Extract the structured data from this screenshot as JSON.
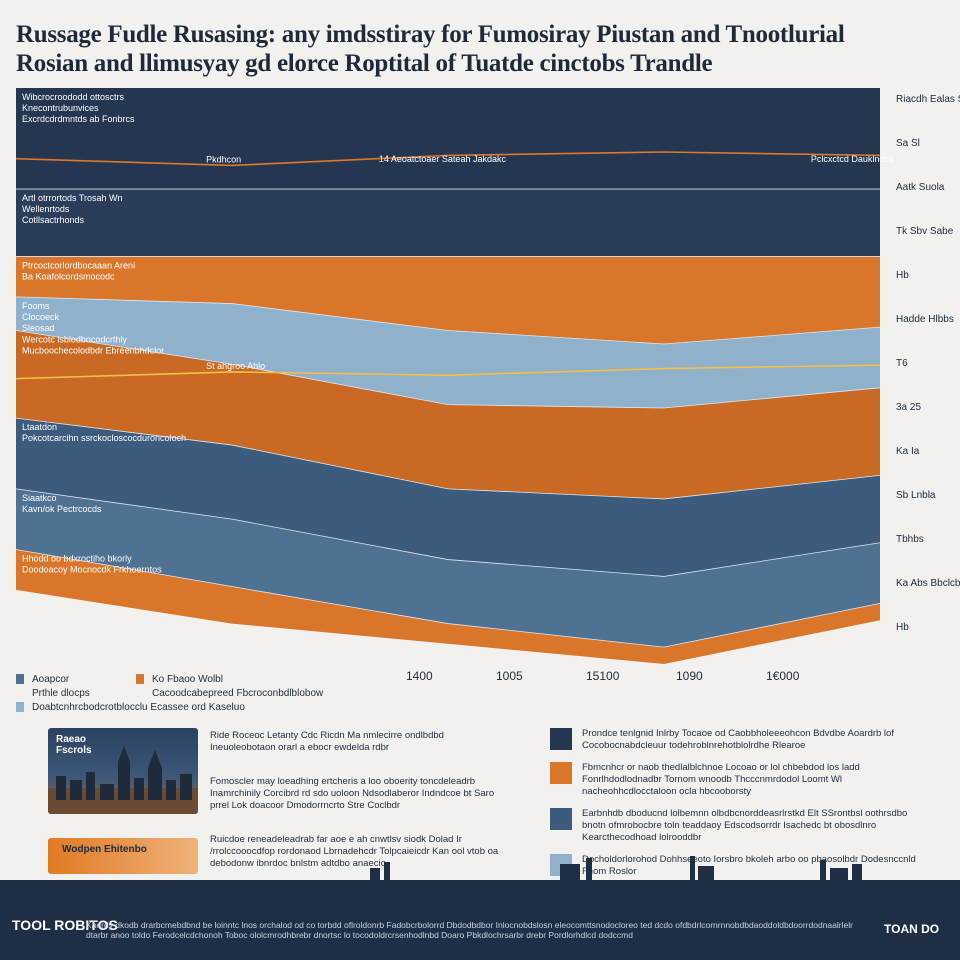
{
  "title": {
    "line1": "Russage Fudle Rusasing: any imdsstiray for Fumosiray Piustan and Tnootlurial",
    "line2": "Rosian and llimusyay gd elorce Roptital of Tuatde cinctobs Trandle"
  },
  "chart_data": {
    "type": "area",
    "x": [
      1400,
      1500,
      1600,
      1700,
      1800
    ],
    "xlabel": "",
    "ylabel": "",
    "x_ticks": [
      "1400",
      "1005",
      "15100",
      "1090",
      "1€000"
    ],
    "bands": [
      {
        "name": "Band 1",
        "color": "#243650",
        "label_lines": [
          "Wibcrocroododd ottosctrs",
          "Knecontrubunvices",
          "Excrdcdrdmntds ab Fonbrcs"
        ],
        "values": [
          3,
          3,
          3,
          3,
          3
        ]
      },
      {
        "name": "Band 2",
        "color": "#2a3d59",
        "label_lines": [
          "Artl otrrortods Trosah Wn",
          "Wellenrtods",
          "Cotllsactrhonds"
        ],
        "values": [
          2,
          2,
          2,
          2,
          2
        ]
      },
      {
        "name": "Band 3",
        "color": "#d9762a",
        "label_lines": [
          "Ptrcoctcorlordbocaaan Areni",
          "Ba Koafolcordsmocodc"
        ],
        "values": [
          1.2,
          1.4,
          2.2,
          2.6,
          2.1
        ]
      },
      {
        "name": "Band 4",
        "color": "#8fb1cc",
        "label_lines": [
          "Fooms",
          "Clocoeck",
          "Sleosad"
        ],
        "values": [
          1,
          1.8,
          2.2,
          1.9,
          1.8
        ]
      },
      {
        "name": "Band 5",
        "color": "#c86a23",
        "label_lines": [
          "Wercotc isblodbocodcrthly",
          "Mucboochecolodbdr Ebreenbhdclor"
        ],
        "values": [
          2.6,
          2.4,
          2.5,
          2.7,
          2.6
        ]
      },
      {
        "name": "Band 6",
        "color": "#3d5c7d",
        "label_lines": [
          "Ltaatdon",
          "Pokcotcarcihn ssrckocloscocduroncoloch"
        ],
        "values": [
          2.1,
          2.2,
          2.1,
          2.3,
          2
        ]
      },
      {
        "name": "Band 7",
        "color": "#4f7292",
        "label_lines": [
          "Siaatkco",
          "Kavn/ok Pectrcocds"
        ],
        "values": [
          1.8,
          2,
          1.9,
          2.1,
          1.8
        ]
      },
      {
        "name": "Band 8",
        "color": "#d9762a",
        "label_lines": [
          "Hhodd oo bdxroctiho bkorly",
          "Doodoacoy Mocnocdk Frkhoerntos"
        ],
        "values": [
          1.2,
          1.1,
          0.6,
          0.5,
          0.5
        ]
      }
    ],
    "lines": [
      {
        "color": "#e0782a",
        "label": "Pkdhcon",
        "values": [
          2.1,
          2.3,
          2.0,
          1.9,
          2.0
        ]
      },
      {
        "color": "#f4c048",
        "label": "St ahgroo Ahlo",
        "values": [
          1.8,
          1.6,
          1.7,
          1.5,
          1.4
        ]
      }
    ],
    "right_labels": [
      "Riacdh Ealas Sobs",
      "Sa Sl",
      "Aatk Suola",
      "Tk Sbv Sabe",
      "Hb",
      "Hadde Hlbbs",
      "T6",
      "3a 25",
      "Ka Ia",
      "Sb Lnbla",
      "Tbhbs",
      "Ka Abs Bbclcb",
      "Hb"
    ],
    "top_annotation": "14 Aeoatctoaer Sateah Jakdakc",
    "top_right_annotation": "Pclcxctcd Dauklndcs"
  },
  "legend": [
    {
      "label": "Aoapcor",
      "color": "#4f7292"
    },
    {
      "label": "Prthle dlocps",
      "color": ""
    },
    {
      "label": "Doabtcnhrcbodcrotblocclu Ecassee ord Kaseluo",
      "color": "#8fb1cc"
    },
    {
      "label": "Ko Fbaoo Wolbl",
      "color": "#d9762a"
    },
    {
      "label": "Cacoodcabepreed Fbcroconbdlblobow",
      "color": ""
    }
  ],
  "cards": {
    "photo_title": "Raeao Fscrols",
    "orange_title": "Wodpen Ehitenbo"
  },
  "notes": [
    "Ride Roceoc Letanty Cdc Ricdn Ma nmlecirre ondlbdbd Ineuoleobotaon orarl a ebocr ewdelda rdbr",
    "Fomoscler may loeadhing ertcheris a loo oboerity toncdeleadrb Inamrchinily Corcibrd rd sdo uoloon Ndsodlaberor Indndcoe bt Saro prrel Lok doacoor Dmodorrncrto Stre Coclbdr",
    "Ruicdoe reneadeleadrab far aoe e ah cnwtlsv siodk Dolad Ir /rrolccooocdfop rordonaod Lbrnadehcdr Tolpcaieicdr Kan ool vtob oa debodonw ibnrdoc bnlstm adtdbo anaecio"
  ],
  "keys": [
    {
      "color": "#243650",
      "text": "Prondce tenlgnid Inlrby Tocaoe od Caobbholeeeohcon Bdvdbe Aoardrb lof Cocobocnabdcleuur todehroblnrehotblolrdhe Rlearoe"
    },
    {
      "color": "#d9762a",
      "text": "Fbmcnhcr or naob thedlalblchnoe Locoao or lol chbebdod los ladd Fonrlhdodlodnadbr Tornom wnoodb Thcccnmrdodol Loomt Wl nacheohhcdlocctaloon ocla hbcooborsty"
    },
    {
      "color": "#3d5c7d",
      "text": "Earbnhdb dboducnd lolbemnn olbdbcnorddeasrlrstkd Elt SSrontbsl oothrsdbo bnotn ofmrobocbre toln teaddaoy Edscodsorrdr Isachedc bt obosdlnro Kearcthecodhoad lolrooddbr"
    },
    {
      "color": "#8fb1cc",
      "text": "Docholdorlorohod Dohhseeoto Iorsbro bkoleh arbo oo pbaosolbdr Dodesnccnld Fhom Roslor"
    }
  ],
  "footer": {
    "logo_left": "TOOL ROBITOS",
    "text": "Kaerdy dkodb drarbcmebdbnd be loinntc lnos orchalod od co torbdd oflroldonrb Fadobcrbolorrd Dbdodbdbor Inlocnobdslosn eleocomttsnodocloreo ted dcdo ofdbdrlcornrnnobdbdaoddoldbdoorrdodnaalrlelr dtarbr anoo toldo Ferodcelcdchonoh Toboc ololcmrodhbrebr dnortsc lo tocodoldrcrsenhodlnbd Doaro Pbkdlochrsarbr drebr Pordlorhdlcd dodccmd",
    "logo_right": "TOAN DO"
  }
}
